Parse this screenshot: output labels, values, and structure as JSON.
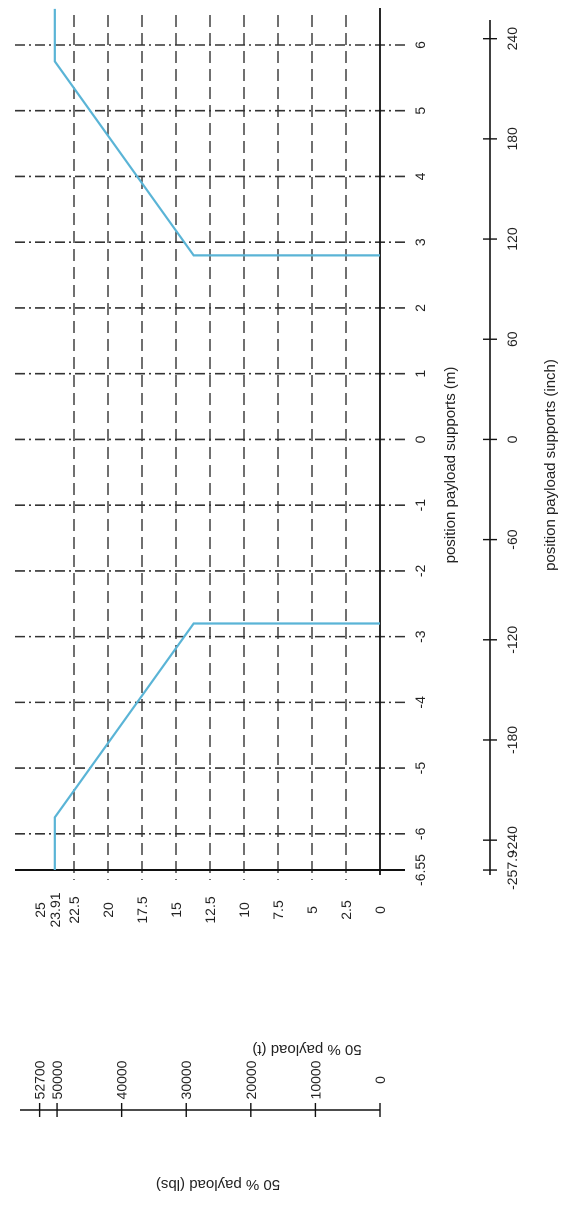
{
  "chart_data": {
    "type": "line",
    "orientation": "rotated 90 degrees clockwise",
    "title": "",
    "xlabel": "position payload supports (m)",
    "xlabel_secondary": "position payload supports (inch)",
    "ylabel": "50 % payload (t)",
    "ylabel_secondary": "50 % payload (lbs)",
    "xlim": [
      -6.55,
      6.55
    ],
    "ylim": [
      0,
      25
    ],
    "grid": true,
    "legend": "none",
    "x_ticks": [
      "-6.55",
      "-6",
      "-5",
      "-4",
      "-3",
      "-2",
      "-1",
      "0",
      "1",
      "2",
      "3",
      "4",
      "5",
      "6"
    ],
    "x_tick_values": [
      -6.55,
      -6,
      -5,
      -4,
      -3,
      -2,
      -1,
      0,
      1,
      2,
      3,
      4,
      5,
      6
    ],
    "y_ticks": [
      "0",
      "2.5",
      "5",
      "7.5",
      "10",
      "12.5",
      "15",
      "17.5",
      "20",
      "22.5",
      "23.91",
      "25"
    ],
    "y_tick_values": [
      0,
      2.5,
      5,
      7.5,
      10,
      12.5,
      15,
      17.5,
      20,
      22.5,
      23.91,
      25
    ],
    "secondary_x_ticks": [
      "-257.9",
      "-240",
      "-180",
      "-120",
      "-60",
      "0",
      "60",
      "120",
      "180",
      "240"
    ],
    "secondary_x_tick_values": [
      -257.9,
      -240,
      -180,
      -120,
      -60,
      0,
      60,
      120,
      180,
      240
    ],
    "secondary_y_ticks": [
      "0",
      "10000",
      "20000",
      "30000",
      "40000",
      "50000",
      "52700"
    ],
    "secondary_y_tick_values": [
      0,
      10000,
      20000,
      30000,
      40000,
      50000,
      52700
    ],
    "series": [
      {
        "color": "#5ab4d6",
        "segments": [
          {
            "x": [
              -6.55,
              -5.75,
              -2.8,
              -2.8
            ],
            "y": [
              23.91,
              23.91,
              13.7,
              0
            ]
          },
          {
            "x": [
              2.8,
              2.8,
              5.75,
              6.55
            ],
            "y": [
              0,
              13.7,
              23.91,
              23.91
            ]
          }
        ]
      }
    ]
  }
}
